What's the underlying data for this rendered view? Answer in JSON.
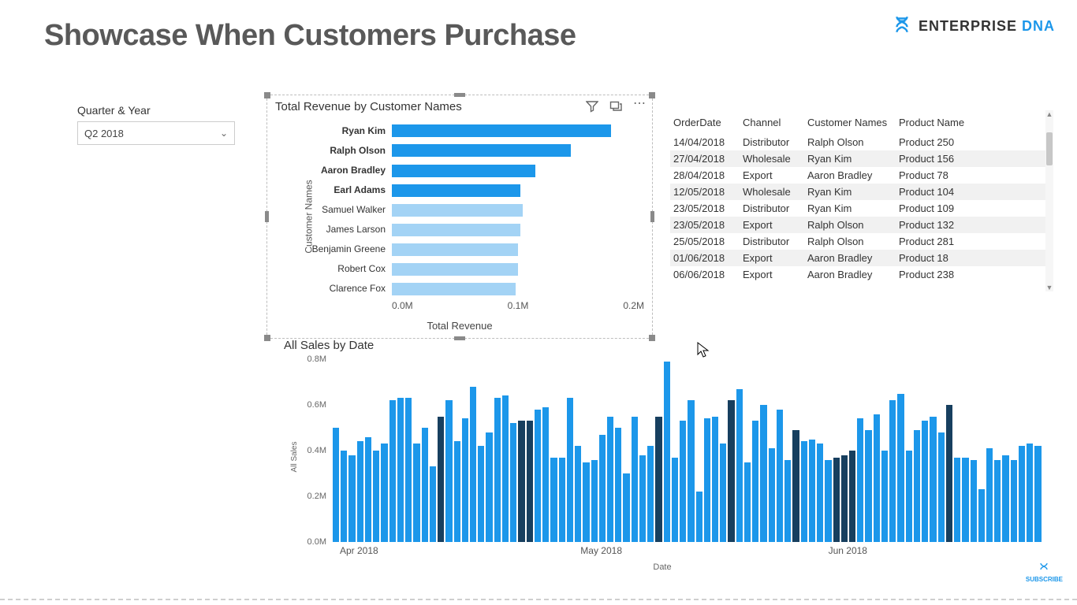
{
  "page": {
    "title": "Showcase When Customers Purchase",
    "logo_brand": "ENTERPRISE",
    "logo_suffix": "DNA",
    "subscribe_label": "SUBSCRIBE"
  },
  "slicer": {
    "label": "Quarter & Year",
    "value": "Q2 2018"
  },
  "customer_chart": {
    "type": "bar-horizontal",
    "title": "Total Revenue by Customer Names",
    "axis_y_title": "Customer Names",
    "axis_x_title": "Total Revenue",
    "xlim_max": 0.2,
    "xticks": [
      "0.0M",
      "0.1M",
      "0.2M"
    ],
    "bar_color_highlight": "#1c97ea",
    "bar_color_normal": "#a3d3f5",
    "background_color": "#ffffff",
    "rows": [
      {
        "name": "Ryan Kim",
        "value": 0.174,
        "highlight": true
      },
      {
        "name": "Ralph Olson",
        "value": 0.142,
        "highlight": true
      },
      {
        "name": "Aaron Bradley",
        "value": 0.114,
        "highlight": true
      },
      {
        "name": "Earl Adams",
        "value": 0.102,
        "highlight": true
      },
      {
        "name": "Samuel Walker",
        "value": 0.104,
        "highlight": false
      },
      {
        "name": "James Larson",
        "value": 0.102,
        "highlight": false
      },
      {
        "name": "Benjamin Greene",
        "value": 0.1,
        "highlight": false
      },
      {
        "name": "Robert Cox",
        "value": 0.1,
        "highlight": false
      },
      {
        "name": "Clarence Fox",
        "value": 0.098,
        "highlight": false
      }
    ]
  },
  "table": {
    "columns": [
      "OrderDate",
      "Channel",
      "Customer Names",
      "Product Name"
    ],
    "rows": [
      [
        "14/04/2018",
        "Distributor",
        "Ralph Olson",
        "Product 250"
      ],
      [
        "27/04/2018",
        "Wholesale",
        "Ryan Kim",
        "Product 156"
      ],
      [
        "28/04/2018",
        "Export",
        "Aaron Bradley",
        "Product 78"
      ],
      [
        "12/05/2018",
        "Wholesale",
        "Ryan Kim",
        "Product 104"
      ],
      [
        "23/05/2018",
        "Distributor",
        "Ryan Kim",
        "Product 109"
      ],
      [
        "23/05/2018",
        "Export",
        "Ralph Olson",
        "Product 132"
      ],
      [
        "25/05/2018",
        "Distributor",
        "Ralph Olson",
        "Product 281"
      ],
      [
        "01/06/2018",
        "Export",
        "Aaron Bradley",
        "Product 18"
      ],
      [
        "06/06/2018",
        "Export",
        "Aaron Bradley",
        "Product 238"
      ]
    ],
    "row_alt_bg": "#f1f1f1"
  },
  "date_chart": {
    "type": "bar",
    "title": "All Sales by Date",
    "axis_y_title": "All Sales",
    "axis_x_title": "Date",
    "ylim_max": 0.8,
    "yticks": [
      "0.0M",
      "0.2M",
      "0.4M",
      "0.6M",
      "0.8M"
    ],
    "bar_color": "#1c97ea",
    "bar_color_highlight": "#173f5f",
    "xticks": [
      {
        "label": "Apr 2018",
        "pos": 0.01
      },
      {
        "label": "May 2018",
        "pos": 0.35
      },
      {
        "label": "Jun 2018",
        "pos": 0.7
      }
    ],
    "values": [
      {
        "v": 0.5,
        "h": 0
      },
      {
        "v": 0.4,
        "h": 0
      },
      {
        "v": 0.38,
        "h": 0
      },
      {
        "v": 0.44,
        "h": 0
      },
      {
        "v": 0.46,
        "h": 0
      },
      {
        "v": 0.4,
        "h": 0
      },
      {
        "v": 0.43,
        "h": 0
      },
      {
        "v": 0.62,
        "h": 0
      },
      {
        "v": 0.63,
        "h": 0
      },
      {
        "v": 0.63,
        "h": 0
      },
      {
        "v": 0.43,
        "h": 0
      },
      {
        "v": 0.5,
        "h": 0
      },
      {
        "v": 0.33,
        "h": 0
      },
      {
        "v": 0.55,
        "h": 1
      },
      {
        "v": 0.62,
        "h": 0
      },
      {
        "v": 0.44,
        "h": 0
      },
      {
        "v": 0.54,
        "h": 0
      },
      {
        "v": 0.68,
        "h": 0
      },
      {
        "v": 0.42,
        "h": 0
      },
      {
        "v": 0.48,
        "h": 0
      },
      {
        "v": 0.63,
        "h": 0
      },
      {
        "v": 0.64,
        "h": 0
      },
      {
        "v": 0.52,
        "h": 0
      },
      {
        "v": 0.53,
        "h": 1
      },
      {
        "v": 0.53,
        "h": 1
      },
      {
        "v": 0.58,
        "h": 0
      },
      {
        "v": 0.59,
        "h": 0
      },
      {
        "v": 0.37,
        "h": 0
      },
      {
        "v": 0.37,
        "h": 0
      },
      {
        "v": 0.63,
        "h": 0
      },
      {
        "v": 0.42,
        "h": 0
      },
      {
        "v": 0.35,
        "h": 0
      },
      {
        "v": 0.36,
        "h": 0
      },
      {
        "v": 0.47,
        "h": 0
      },
      {
        "v": 0.55,
        "h": 0
      },
      {
        "v": 0.5,
        "h": 0
      },
      {
        "v": 0.3,
        "h": 0
      },
      {
        "v": 0.55,
        "h": 0
      },
      {
        "v": 0.38,
        "h": 0
      },
      {
        "v": 0.42,
        "h": 0
      },
      {
        "v": 0.55,
        "h": 1
      },
      {
        "v": 0.79,
        "h": 0
      },
      {
        "v": 0.37,
        "h": 0
      },
      {
        "v": 0.53,
        "h": 0
      },
      {
        "v": 0.62,
        "h": 0
      },
      {
        "v": 0.22,
        "h": 0
      },
      {
        "v": 0.54,
        "h": 0
      },
      {
        "v": 0.55,
        "h": 0
      },
      {
        "v": 0.43,
        "h": 0
      },
      {
        "v": 0.62,
        "h": 1
      },
      {
        "v": 0.67,
        "h": 0
      },
      {
        "v": 0.35,
        "h": 0
      },
      {
        "v": 0.53,
        "h": 0
      },
      {
        "v": 0.6,
        "h": 0
      },
      {
        "v": 0.41,
        "h": 0
      },
      {
        "v": 0.58,
        "h": 0
      },
      {
        "v": 0.36,
        "h": 0
      },
      {
        "v": 0.49,
        "h": 1
      },
      {
        "v": 0.44,
        "h": 0
      },
      {
        "v": 0.45,
        "h": 0
      },
      {
        "v": 0.43,
        "h": 0
      },
      {
        "v": 0.36,
        "h": 0
      },
      {
        "v": 0.37,
        "h": 1
      },
      {
        "v": 0.38,
        "h": 1
      },
      {
        "v": 0.4,
        "h": 1
      },
      {
        "v": 0.54,
        "h": 0
      },
      {
        "v": 0.49,
        "h": 0
      },
      {
        "v": 0.56,
        "h": 0
      },
      {
        "v": 0.4,
        "h": 0
      },
      {
        "v": 0.62,
        "h": 0
      },
      {
        "v": 0.65,
        "h": 0
      },
      {
        "v": 0.4,
        "h": 0
      },
      {
        "v": 0.49,
        "h": 0
      },
      {
        "v": 0.53,
        "h": 0
      },
      {
        "v": 0.55,
        "h": 0
      },
      {
        "v": 0.48,
        "h": 0
      },
      {
        "v": 0.6,
        "h": 1
      },
      {
        "v": 0.37,
        "h": 0
      },
      {
        "v": 0.37,
        "h": 0
      },
      {
        "v": 0.36,
        "h": 0
      },
      {
        "v": 0.23,
        "h": 0
      },
      {
        "v": 0.41,
        "h": 0
      },
      {
        "v": 0.36,
        "h": 0
      },
      {
        "v": 0.38,
        "h": 0
      },
      {
        "v": 0.36,
        "h": 0
      },
      {
        "v": 0.42,
        "h": 0
      },
      {
        "v": 0.43,
        "h": 0
      },
      {
        "v": 0.42,
        "h": 0
      }
    ]
  }
}
